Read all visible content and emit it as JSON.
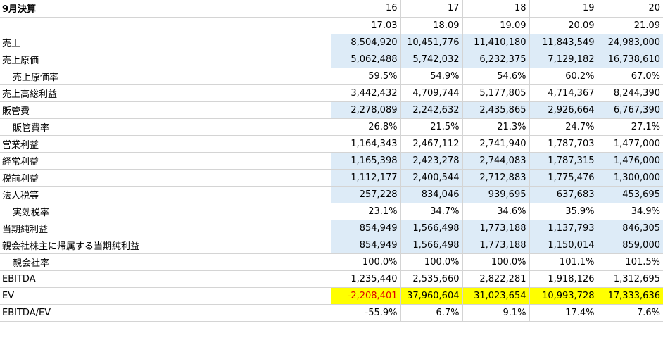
{
  "header": {
    "title": "9月決算",
    "periods": [
      "16",
      "17",
      "18",
      "19",
      "20"
    ],
    "dates": [
      "17.03",
      "18.09",
      "19.09",
      "20.09",
      "21.09"
    ]
  },
  "rows": [
    {
      "label": "売上",
      "indent": false,
      "hl": "blue",
      "values": [
        "8,504,920",
        "10,451,776",
        "11,410,180",
        "11,843,549",
        "24,983,000"
      ]
    },
    {
      "label": "売上原価",
      "indent": false,
      "hl": "blue",
      "values": [
        "5,062,488",
        "5,742,032",
        "6,232,375",
        "7,129,182",
        "16,738,610"
      ]
    },
    {
      "label": "売上原価率",
      "indent": true,
      "hl": "",
      "values": [
        "59.5%",
        "54.9%",
        "54.6%",
        "60.2%",
        "67.0%"
      ]
    },
    {
      "label": "売上高総利益",
      "indent": false,
      "hl": "",
      "values": [
        "3,442,432",
        "4,709,744",
        "5,177,805",
        "4,714,367",
        "8,244,390"
      ]
    },
    {
      "label": "販管費",
      "indent": false,
      "hl": "blue",
      "values": [
        "2,278,089",
        "2,242,632",
        "2,435,865",
        "2,926,664",
        "6,767,390"
      ]
    },
    {
      "label": "販管費率",
      "indent": true,
      "hl": "",
      "values": [
        "26.8%",
        "21.5%",
        "21.3%",
        "24.7%",
        "27.1%"
      ]
    },
    {
      "label": "営業利益",
      "indent": false,
      "hl": "",
      "values": [
        "1,164,343",
        "2,467,112",
        "2,741,940",
        "1,787,703",
        "1,477,000"
      ]
    },
    {
      "label": "経常利益",
      "indent": false,
      "hl": "blue",
      "values": [
        "1,165,398",
        "2,423,278",
        "2,744,083",
        "1,787,315",
        "1,476,000"
      ]
    },
    {
      "label": "税前利益",
      "indent": false,
      "hl": "blue",
      "values": [
        "1,112,177",
        "2,400,544",
        "2,712,883",
        "1,775,476",
        "1,300,000"
      ]
    },
    {
      "label": "法人税等",
      "indent": false,
      "hl": "blue",
      "values": [
        "257,228",
        "834,046",
        "939,695",
        "637,683",
        "453,695"
      ]
    },
    {
      "label": "実効税率",
      "indent": true,
      "hl": "",
      "values": [
        "23.1%",
        "34.7%",
        "34.6%",
        "35.9%",
        "34.9%"
      ]
    },
    {
      "label": "当期純利益",
      "indent": false,
      "hl": "blue",
      "values": [
        "854,949",
        "1,566,498",
        "1,773,188",
        "1,137,793",
        "846,305"
      ]
    },
    {
      "label": "親会社株主に帰属する当期純利益",
      "indent": false,
      "hl": "blue",
      "values": [
        "854,949",
        "1,566,498",
        "1,773,188",
        "1,150,014",
        "859,000"
      ]
    },
    {
      "label": "親会社率",
      "indent": true,
      "hl": "",
      "values": [
        "100.0%",
        "100.0%",
        "100.0%",
        "101.1%",
        "101.5%"
      ]
    },
    {
      "label": "EBITDA",
      "indent": false,
      "hl": "",
      "values": [
        "1,235,440",
        "2,535,660",
        "2,822,281",
        "1,918,126",
        "1,312,695"
      ]
    },
    {
      "label": "EV",
      "indent": false,
      "hl": "yellow",
      "values": [
        "-2,208,401",
        "37,960,604",
        "31,023,654",
        "10,993,728",
        "17,333,636"
      ],
      "negative_first": true
    },
    {
      "label": "EBITDA/EV",
      "indent": false,
      "hl": "",
      "values": [
        "-55.9%",
        "6.7%",
        "9.1%",
        "17.4%",
        "7.6%"
      ]
    }
  ],
  "colors": {
    "blue_fill": "#ddebf7",
    "yellow_fill": "#ffff00",
    "negative_text": "#e00000",
    "grid": "#d4d4d4"
  }
}
